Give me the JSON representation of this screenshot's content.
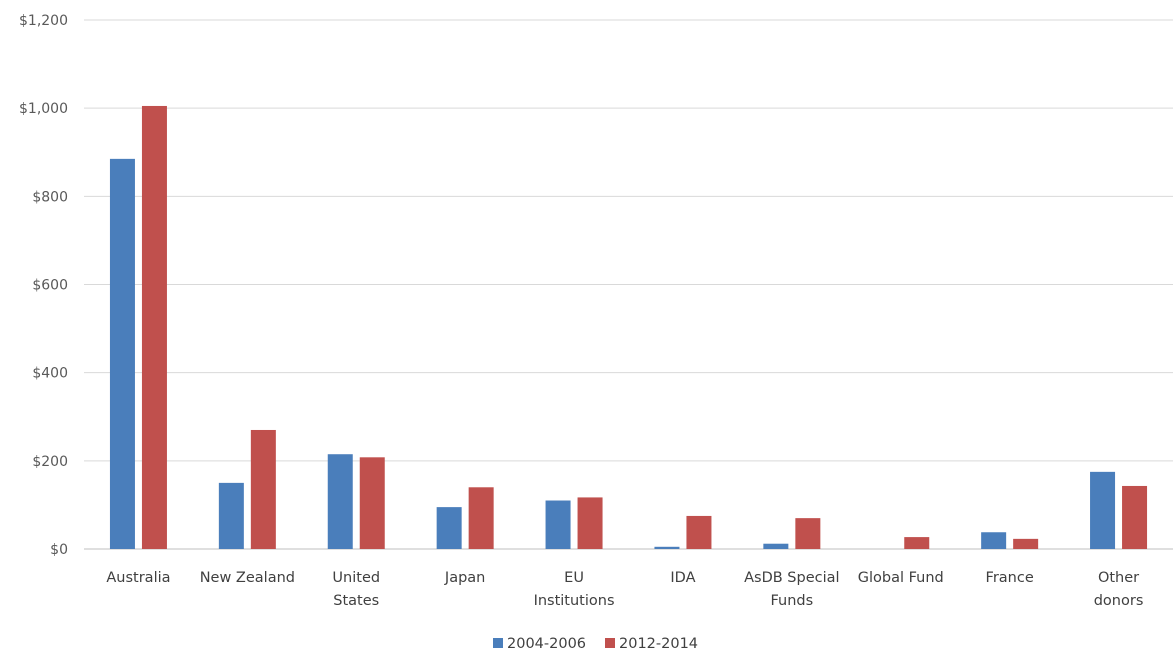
{
  "chart_data": {
    "type": "bar",
    "title": "",
    "xlabel": "",
    "ylabel": "",
    "ylim": [
      0,
      1200
    ],
    "y_ticks": [
      0,
      200,
      400,
      600,
      800,
      1000,
      1200
    ],
    "y_tick_labels": [
      "$0",
      "$200",
      "$400",
      "$600",
      "$800",
      "$1,000",
      "$1,200"
    ],
    "grid": true,
    "legend_position": "bottom",
    "categories": [
      [
        "Australia"
      ],
      [
        "New Zealand"
      ],
      [
        "United",
        "States"
      ],
      [
        "Japan"
      ],
      [
        "EU",
        "Institutions"
      ],
      [
        "IDA"
      ],
      [
        "AsDB Special",
        "Funds"
      ],
      [
        "Global Fund"
      ],
      [
        "France"
      ],
      [
        "Other",
        "donors"
      ]
    ],
    "series": [
      {
        "name": "2004-2006",
        "color": "#4a7ebb",
        "values": [
          885,
          150,
          215,
          95,
          110,
          5,
          12,
          0,
          38,
          175
        ]
      },
      {
        "name": "2012-2014",
        "color": "#c0504d",
        "values": [
          1005,
          270,
          208,
          140,
          117,
          75,
          70,
          27,
          23,
          143
        ]
      }
    ]
  }
}
